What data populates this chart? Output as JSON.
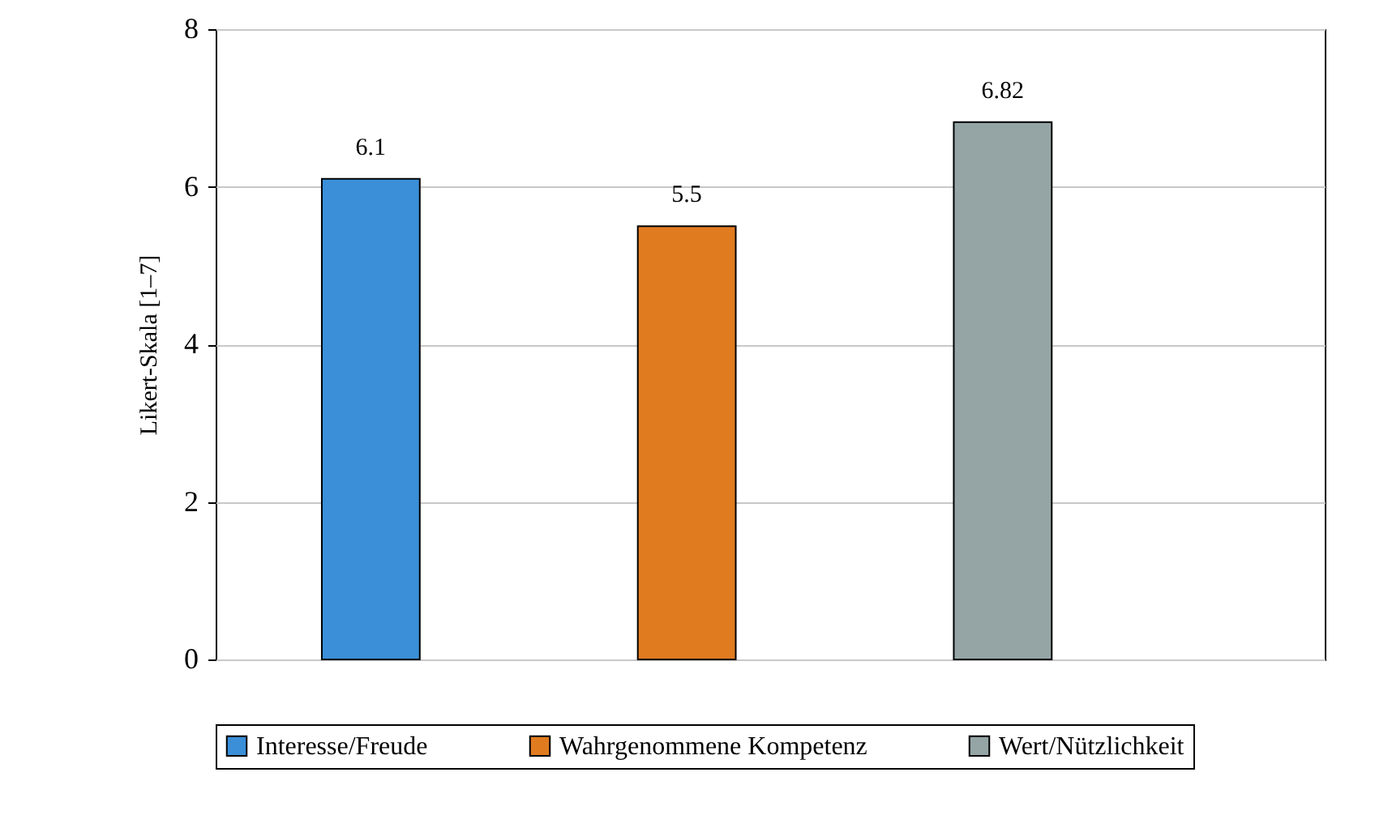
{
  "chart_data": {
    "type": "bar",
    "ylabel": "Likert-Skala [1–7]",
    "categories": [
      null,
      null,
      null
    ],
    "series": [
      {
        "name": "Interesse/Freude",
        "color": "#3a8fd8",
        "values": [
          6.1,
          null,
          null
        ]
      },
      {
        "name": "Wahrgenommene Kompetenz",
        "color": "#e07b20",
        "values": [
          null,
          5.5,
          null
        ]
      },
      {
        "name": "Wert/Nützlichkeit",
        "color": "#95a5a6",
        "values": [
          null,
          null,
          6.82
        ]
      }
    ],
    "ylim": [
      0,
      8
    ],
    "yticks": [
      0,
      2,
      4,
      6,
      8
    ],
    "grid": "y",
    "data_labels": true,
    "legend": "bottom"
  }
}
